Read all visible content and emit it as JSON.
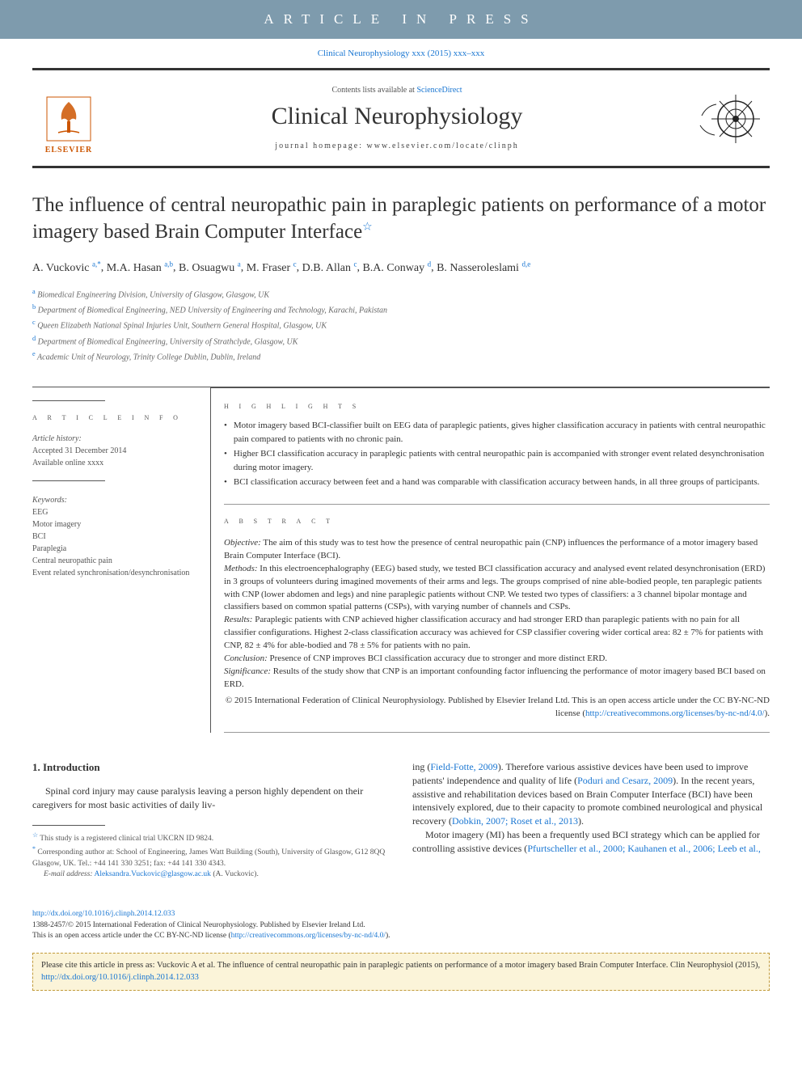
{
  "colors": {
    "banner_bg": "#7e9bad",
    "banner_text": "#ffffff",
    "link": "#1976d2",
    "rule": "#333333",
    "text": "#333333",
    "muted": "#555555",
    "elsevier": "#cc5500",
    "cite_bg": "#fbf4d9",
    "cite_border": "#c19a3a"
  },
  "fontsizes": {
    "banner": 17,
    "journal_title": 30,
    "article_title": 25,
    "body": 12,
    "abstract": 11,
    "small": 10,
    "footnote": 9.5
  },
  "banner": {
    "text": "ARTICLE IN PRESS"
  },
  "journal_ref": {
    "text": "Clinical Neurophysiology xxx (2015) xxx–xxx"
  },
  "header": {
    "contents_prefix": "Contents lists available at ",
    "contents_link": "ScienceDirect",
    "journal_title": "Clinical Neurophysiology",
    "homepage_label": "journal homepage: www.elsevier.com/locate/clinph",
    "elsevier_label": "ELSEVIER"
  },
  "title": {
    "text": "The influence of central neuropathic pain in paraplegic patients on performance of a motor imagery based Brain Computer Interface",
    "star": "☆"
  },
  "authors": [
    {
      "name": "A. Vuckovic",
      "aff": "a,*"
    },
    {
      "name": "M.A. Hasan",
      "aff": "a,b"
    },
    {
      "name": "B. Osuagwu",
      "aff": "a"
    },
    {
      "name": "M. Fraser",
      "aff": "c"
    },
    {
      "name": "D.B. Allan",
      "aff": "c"
    },
    {
      "name": "B.A. Conway",
      "aff": "d"
    },
    {
      "name": "B. Nasseroleslami",
      "aff": "d,e"
    }
  ],
  "affiliations": [
    {
      "sup": "a",
      "text": "Biomedical Engineering Division, University of Glasgow, Glasgow, UK"
    },
    {
      "sup": "b",
      "text": "Department of Biomedical Engineering, NED University of Engineering and Technology, Karachi, Pakistan"
    },
    {
      "sup": "c",
      "text": "Queen Elizabeth National Spinal Injuries Unit, Southern General Hospital, Glasgow, UK"
    },
    {
      "sup": "d",
      "text": "Department of Biomedical Engineering, University of Strathclyde, Glasgow, UK"
    },
    {
      "sup": "e",
      "text": "Academic Unit of Neurology, Trinity College Dublin, Dublin, Ireland"
    }
  ],
  "article_info": {
    "heading": "a r t i c l e   i n f o",
    "history_label": "Article history:",
    "accepted": "Accepted 31 December 2014",
    "available": "Available online xxxx",
    "keywords_label": "Keywords:",
    "keywords": [
      "EEG",
      "Motor imagery",
      "BCI",
      "Paraplegia",
      "Central neuropathic pain",
      "Event related synchronisation/desynchronisation"
    ]
  },
  "highlights": {
    "heading": "h i g h l i g h t s",
    "items": [
      "Motor imagery based BCI-classifier built on EEG data of paraplegic patients, gives higher classification accuracy in patients with central neuropathic pain compared to patients with no chronic pain.",
      "Higher BCI classification accuracy in paraplegic patients with central neuropathic pain is accompanied with stronger event related desynchronisation during motor imagery.",
      "BCI classification accuracy between feet and a hand was comparable with classification accuracy between hands, in all three groups of participants."
    ]
  },
  "abstract": {
    "heading": "a b s t r a c t",
    "objective_label": "Objective:",
    "objective": " The aim of this study was to test how the presence of central neuropathic pain (CNP) influences the performance of a motor imagery based Brain Computer Interface (BCI).",
    "methods_label": "Methods:",
    "methods": " In this electroencephalography (EEG) based study, we tested BCI classification accuracy and analysed event related desynchronisation (ERD) in 3 groups of volunteers during imagined movements of their arms and legs. The groups comprised of nine able-bodied people, ten paraplegic patients with CNP (lower abdomen and legs) and nine paraplegic patients without CNP. We tested two types of classifiers: a 3 channel bipolar montage and classifiers based on common spatial patterns (CSPs), with varying number of channels and CSPs.",
    "results_label": "Results:",
    "results": " Paraplegic patients with CNP achieved higher classification accuracy and had stronger ERD than paraplegic patients with no pain for all classifier configurations. Highest 2-class classification accuracy was achieved for CSP classifier covering wider cortical area: 82 ± 7% for patients with CNP, 82 ± 4% for able-bodied and 78 ± 5% for patients with no pain.",
    "conclusion_label": "Conclusion:",
    "conclusion": " Presence of CNP improves BCI classification accuracy due to stronger and more distinct ERD.",
    "significance_label": "Significance:",
    "significance": " Results of the study show that CNP is an important confounding factor influencing the performance of motor imagery based BCI based on ERD.",
    "copyright": "© 2015 International Federation of Clinical Neurophysiology. Published by Elsevier Ireland Ltd. This is an open access article under the CC BY-NC-ND license (",
    "license_url": "http://creativecommons.org/licenses/by-nc-nd/4.0/",
    "copyright_close": ")."
  },
  "intro": {
    "heading": "1. Introduction",
    "col1_p1": "Spinal cord injury may cause paralysis leaving a person highly dependent on their caregivers for most basic activities of daily liv-",
    "col2_p1_a": "ing (",
    "col2_p1_link1": "Field-Fotte, 2009",
    "col2_p1_b": "). Therefore various assistive devices have been used to improve patients' independence and quality of life (",
    "col2_p1_link2": "Poduri and Cesarz, 2009",
    "col2_p1_c": "). In the recent years, assistive and rehabilitation devices based on Brain Computer Interface (BCI) have been intensively explored, due to their capacity to promote combined neurological and physical recovery (",
    "col2_p1_link3": "Dobkin, 2007; Roset et al., 2013",
    "col2_p1_d": ").",
    "col2_p2_a": "Motor imagery (MI) has been a frequently used BCI strategy which can be applied for controlling assistive devices (",
    "col2_p2_link1": "Pfurtscheller et al., 2000; Kauhanen et al., 2006; Leeb et al.,"
  },
  "footnotes": {
    "star_label": "☆",
    "star_text": " This study is a registered clinical trial UKCRN ID 9824.",
    "corr_label": "*",
    "corr_text": " Corresponding author at: School of Engineering, James Watt Building (South), University of Glasgow, G12 8QQ Glasgow, UK. Tel.: +44 141 330 3251; fax: +44 141 330 4343.",
    "email_label": "E-mail address:",
    "email": " Aleksandra.Vuckovic@glasgow.ac.uk",
    "email_tail": " (A. Vuckovic)."
  },
  "pub_footer": {
    "doi": "http://dx.doi.org/10.1016/j.clinph.2014.12.033",
    "line2": "1388-2457/© 2015 International Federation of Clinical Neurophysiology. Published by Elsevier Ireland Ltd.",
    "line3a": "This is an open access article under the CC BY-NC-ND license (",
    "line3_link": "http://creativecommons.org/licenses/by-nc-nd/4.0/",
    "line3b": ")."
  },
  "cite_box": {
    "text_a": "Please cite this article in press as: Vuckovic A et al. The influence of central neuropathic pain in paraplegic patients on performance of a motor imagery based Brain Computer Interface. Clin Neurophysiol (2015), ",
    "link": "http://dx.doi.org/10.1016/j.clinph.2014.12.033"
  }
}
